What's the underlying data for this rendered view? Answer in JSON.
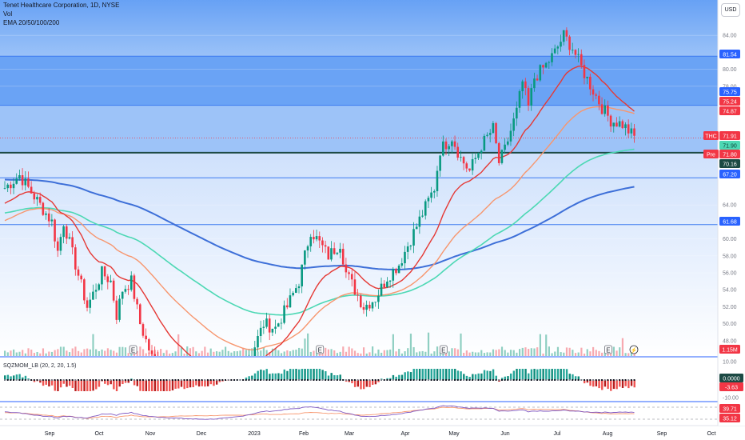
{
  "header": {
    "symbol_line": "Tenet Healthcare Corporation, 1D, NYSE",
    "vol_label": "Vol",
    "ema_label": "EMA 20/50/100/200",
    "currency_button": "USD",
    "oscillator_label": "SQZMOM_LB (20, 2, 20, 1.5)"
  },
  "colors": {
    "up_candle": "#089981",
    "down_candle": "#f23645",
    "ema20": "#e53935",
    "ema50": "#f7966e",
    "ema100": "#4dd8b4",
    "ema200": "#3d6fd8",
    "band_fill": "#7fb1f6",
    "band_fill_light": "#dbe9fd",
    "horizontal_line": "#3d7bf0",
    "dark_line": "#1c4a44"
  },
  "price_axis": {
    "ticks": [
      "84.00",
      "80.00",
      "78.00",
      "64.00",
      "60.00",
      "58.00",
      "56.00",
      "54.00",
      "52.00",
      "50.00",
      "48.00"
    ],
    "labels": [
      {
        "text": "81.54",
        "kind": "blue"
      },
      {
        "text": "75.75",
        "kind": "blue"
      },
      {
        "text": "75.24",
        "kind": "red"
      },
      {
        "text": "74.87",
        "kind": "red"
      },
      {
        "text": "71.91",
        "kind": "red",
        "tag": "THC"
      },
      {
        "text": "71.90",
        "kind": "teal"
      },
      {
        "text": "71.80",
        "kind": "red",
        "tag": "Pre"
      },
      {
        "text": "70.16",
        "kind": "dark"
      },
      {
        "text": "67.20",
        "kind": "blue"
      },
      {
        "text": "61.68",
        "kind": "blue"
      },
      {
        "text": "1.15M",
        "kind": "red"
      }
    ]
  },
  "oscillator_axis": {
    "labels": [
      {
        "text": "10.00",
        "kind": "plain"
      },
      {
        "text": "0.0000",
        "kind": "dark"
      },
      {
        "text": "-3.63",
        "kind": "red"
      },
      {
        "text": "-10.00",
        "kind": "plain"
      }
    ]
  },
  "rsi_axis": {
    "labels": [
      {
        "text": "39.71",
        "kind": "red"
      },
      {
        "text": "35.12",
        "kind": "red"
      }
    ]
  },
  "time_axis": [
    "Sep",
    "Oct",
    "Nov",
    "Dec",
    "2023",
    "Feb",
    "Mar",
    "Apr",
    "May",
    "Jun",
    "Jul",
    "Aug",
    "Sep",
    "Oct"
  ],
  "earnings_marker": "E",
  "chart_data": {
    "type": "candlestick",
    "title": "Tenet Healthcare Corporation, 1D, NYSE",
    "ylim": [
      46,
      86
    ],
    "ema_series": [
      "EMA 20",
      "EMA 50",
      "EMA 100",
      "EMA 200"
    ],
    "last_price": 71.91,
    "premarket_price": 71.8,
    "horizontal_levels": [
      81.54,
      75.75,
      70.16,
      67.2,
      61.68
    ],
    "volume_last": "1.15M",
    "squeeze_momentum_last": -3.63,
    "rsi_values": [
      39.71,
      35.12
    ]
  }
}
